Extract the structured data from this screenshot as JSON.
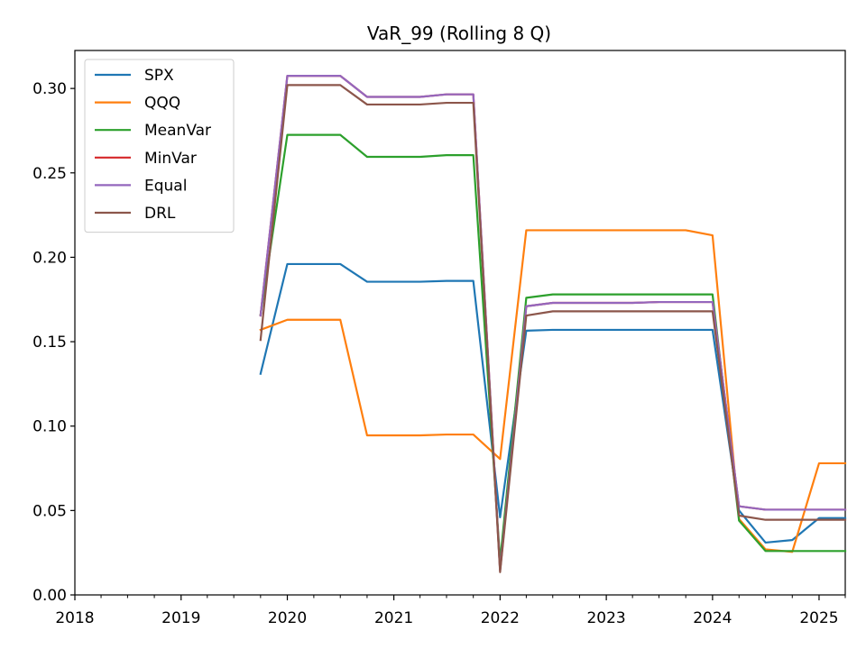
{
  "chart_data": {
    "type": "line",
    "title": "VaR_99 (Rolling 8 Q)",
    "xlabel": "",
    "ylabel": "",
    "xlim": [
      "2018-01-01",
      "2025-04-01"
    ],
    "ylim": [
      0,
      0.3225
    ],
    "x_ticks": [
      "2018",
      "2019",
      "2020",
      "2021",
      "2022",
      "2023",
      "2024",
      "2025"
    ],
    "y_ticks": [
      "0.00",
      "0.05",
      "0.10",
      "0.15",
      "0.20",
      "0.25",
      "0.30"
    ],
    "grid": false,
    "legend_position": "top-left",
    "x": [
      "2019-10-01",
      "2020-01-01",
      "2020-04-01",
      "2020-07-01",
      "2020-10-01",
      "2021-01-01",
      "2021-04-01",
      "2021-07-01",
      "2021-10-01",
      "2022-01-01",
      "2022-04-01",
      "2022-07-01",
      "2022-10-01",
      "2023-01-01",
      "2023-04-01",
      "2023-07-01",
      "2023-10-01",
      "2024-01-01",
      "2024-04-01",
      "2024-07-01",
      "2024-10-01",
      "2025-01-01",
      "2025-04-01"
    ],
    "series": [
      {
        "name": "SPX",
        "color": "#1f77b4",
        "values": [
          0.131,
          0.196,
          0.196,
          0.196,
          0.1855,
          0.1855,
          0.1855,
          0.186,
          0.186,
          0.046,
          0.1565,
          0.157,
          0.157,
          0.157,
          0.157,
          0.157,
          0.157,
          0.157,
          0.05,
          0.031,
          0.0325,
          0.0455,
          0.0455
        ]
      },
      {
        "name": "QQQ",
        "color": "#ff7f0e",
        "values": [
          0.157,
          0.163,
          0.163,
          0.163,
          0.0945,
          0.0945,
          0.0945,
          0.095,
          0.095,
          0.0805,
          0.216,
          0.216,
          0.216,
          0.216,
          0.216,
          0.216,
          0.216,
          0.213,
          0.045,
          0.027,
          0.0255,
          0.078,
          0.078
        ]
      },
      {
        "name": "MeanVar",
        "color": "#2ca02c",
        "values": [
          0.166,
          0.2725,
          0.2725,
          0.2725,
          0.2595,
          0.2595,
          0.2595,
          0.2605,
          0.2605,
          0.02,
          0.176,
          0.178,
          0.178,
          0.178,
          0.178,
          0.178,
          0.178,
          0.178,
          0.044,
          0.026,
          0.026,
          0.026,
          0.026
        ]
      },
      {
        "name": "MinVar",
        "color": "#d62728",
        "values": [
          0.1655,
          0.3075,
          0.3075,
          0.3075,
          0.295,
          0.295,
          0.295,
          0.2965,
          0.2965,
          0.0145,
          0.171,
          0.173,
          0.173,
          0.173,
          0.173,
          0.1735,
          0.1735,
          0.1735,
          0.0525,
          0.0505,
          0.0505,
          0.0505,
          0.0505
        ]
      },
      {
        "name": "Equal",
        "color": "#9467bd",
        "values": [
          0.1655,
          0.3075,
          0.3075,
          0.3075,
          0.295,
          0.295,
          0.295,
          0.2965,
          0.2965,
          0.0145,
          0.171,
          0.173,
          0.173,
          0.173,
          0.173,
          0.1735,
          0.1735,
          0.1735,
          0.0525,
          0.0505,
          0.0505,
          0.0505,
          0.0505
        ]
      },
      {
        "name": "DRL",
        "color": "#8c564b",
        "values": [
          0.151,
          0.302,
          0.302,
          0.302,
          0.2905,
          0.2905,
          0.2905,
          0.2915,
          0.2915,
          0.0135,
          0.1655,
          0.168,
          0.168,
          0.168,
          0.168,
          0.168,
          0.168,
          0.168,
          0.047,
          0.0445,
          0.0445,
          0.0445,
          0.0445
        ]
      }
    ]
  }
}
